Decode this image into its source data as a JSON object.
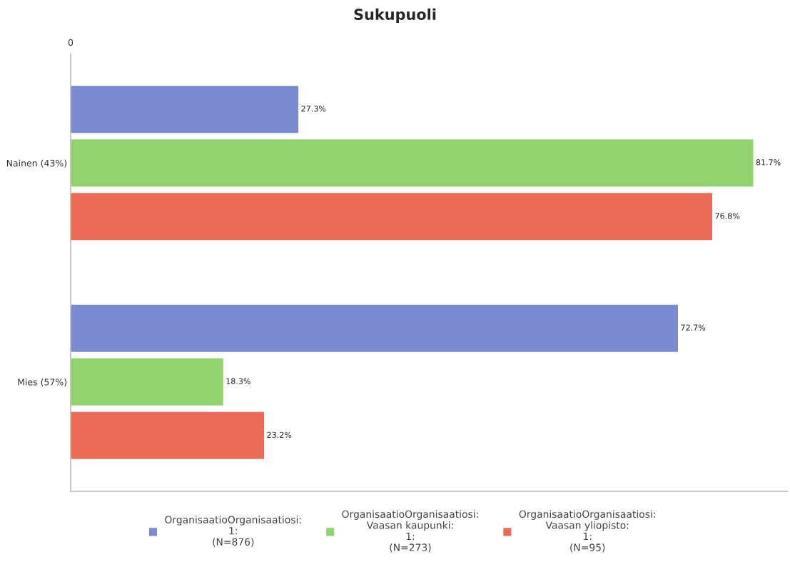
{
  "chart_data": {
    "type": "bar",
    "title": "Sukupuoli",
    "orientation": "horizontal",
    "categories": [
      "Nainen (43%)",
      "Mies (57%)"
    ],
    "series": [
      {
        "name": "OrganisaatioOrganisaatiosi:\n1:\n(N=876)",
        "color": "#7b8bd1",
        "values": [
          27.3,
          72.7
        ],
        "value_labels": [
          "27.3%",
          "72.7%"
        ]
      },
      {
        "name": "OrganisaatioOrganisaatiosi:\nVaasan kaupunki:\n1:\n(N=273)",
        "color": "#92d36e",
        "values": [
          81.7,
          18.3
        ],
        "value_labels": [
          "81.7%",
          "18.3%"
        ]
      },
      {
        "name": "OrganisaatioOrganisaatiosi:\nVaasan yliopisto:\n1:\n(N=95)",
        "color": "#eb6b56",
        "values": [
          76.8,
          23.2
        ],
        "value_labels": [
          "76.8%",
          "23.2%"
        ]
      }
    ],
    "annotations": [
      "0"
    ],
    "legend": "bottom"
  }
}
